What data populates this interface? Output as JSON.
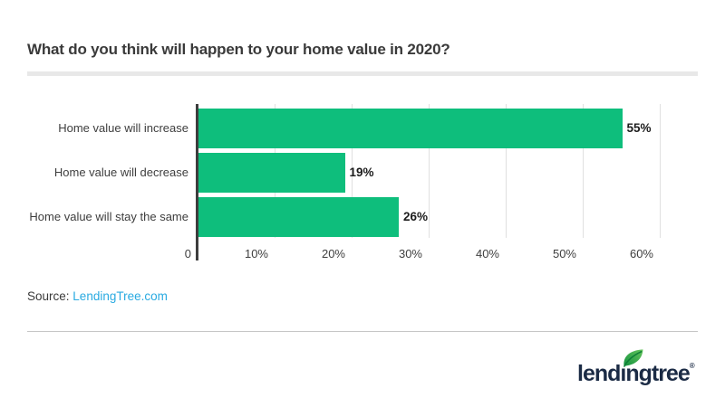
{
  "page": {
    "title": "What do you think will happen to your home value in 2020?",
    "source_label": "Source:",
    "source_link": "LendingTree.com",
    "brand": {
      "name": "lendingtree",
      "registered": "®"
    }
  },
  "colors": {
    "bar": "#0ebe7c",
    "axis": "#3d3d3d",
    "gridline": "#e0e0e0",
    "title": "#3a3a3a",
    "label": "#3e3e3e",
    "value_label": "#1c1c1c",
    "link": "#29aae1",
    "divider": "#c6c6c6",
    "title_rule": "#e8e8e8",
    "logo_navy": "#1b2b45",
    "leaf_dark": "#13923f",
    "leaf_light": "#66c45c"
  },
  "chart_data": {
    "type": "bar",
    "orientation": "horizontal",
    "title": "What do you think will happen to your home value in 2020?",
    "categories": [
      "Home value will increase",
      "Home value will decrease",
      "Home value will stay the same"
    ],
    "values": [
      55,
      19,
      26
    ],
    "value_labels": [
      "55%",
      "19%",
      "26%"
    ],
    "x_ticks": [
      {
        "value": 0,
        "label": "0"
      },
      {
        "value": 10,
        "label": "10%"
      },
      {
        "value": 20,
        "label": "20%"
      },
      {
        "value": 30,
        "label": "30%"
      },
      {
        "value": 40,
        "label": "40%"
      },
      {
        "value": 50,
        "label": "50%"
      },
      {
        "value": 60,
        "label": "60%"
      }
    ],
    "xlim": [
      0,
      60
    ],
    "grid": true,
    "legend": false,
    "bar_color": "#0ebe7c"
  }
}
